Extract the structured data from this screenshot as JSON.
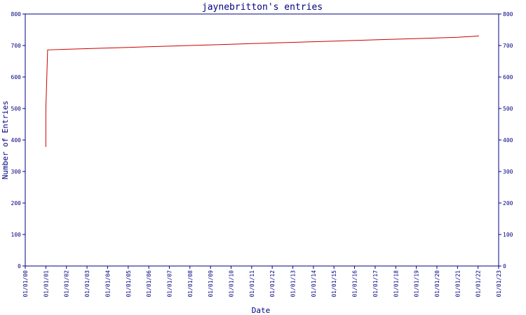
{
  "chart_data": {
    "type": "line",
    "title": "jaynebritton's entries",
    "xlabel": "Date",
    "ylabel": "Number of Entries",
    "ylim": [
      0,
      800
    ],
    "yticks": [
      0,
      100,
      200,
      300,
      400,
      500,
      600,
      700,
      800
    ],
    "x_tick_labels": [
      "01/01/00",
      "01/01/01",
      "01/01/02",
      "01/01/03",
      "01/01/04",
      "01/01/05",
      "01/01/06",
      "01/01/07",
      "01/01/08",
      "01/01/09",
      "01/01/10",
      "01/01/11",
      "01/01/12",
      "01/01/13",
      "01/01/14",
      "01/01/15",
      "01/01/16",
      "01/01/17",
      "01/01/18",
      "01/01/19",
      "01/01/20",
      "01/01/21",
      "01/01/22",
      "01/01/23"
    ],
    "grid": false,
    "y_axis_mirrored_right": true,
    "colors": {
      "axis": "#000080",
      "line": "#cc0000"
    },
    "series": [
      {
        "x": [
          "2000-12-31",
          "2001-01-01",
          "2001-02-01",
          "2002-01-01",
          "2003-01-01",
          "2004-01-01",
          "2005-01-01",
          "2006-01-01",
          "2007-01-01",
          "2008-01-01",
          "2009-01-01",
          "2010-01-01",
          "2011-01-01",
          "2012-01-01",
          "2013-01-01",
          "2014-01-01",
          "2015-01-01",
          "2016-01-01",
          "2017-01-01",
          "2018-01-01",
          "2019-01-01",
          "2020-01-01",
          "2021-01-01",
          "2022-01-01",
          "2022-01-15"
        ],
        "y": [
          378,
          500,
          686,
          688,
          690,
          692,
          694,
          696,
          698,
          700,
          702,
          704,
          706,
          708,
          710,
          712,
          714,
          716,
          718,
          720,
          722,
          724,
          726,
          730,
          732
        ]
      }
    ]
  }
}
